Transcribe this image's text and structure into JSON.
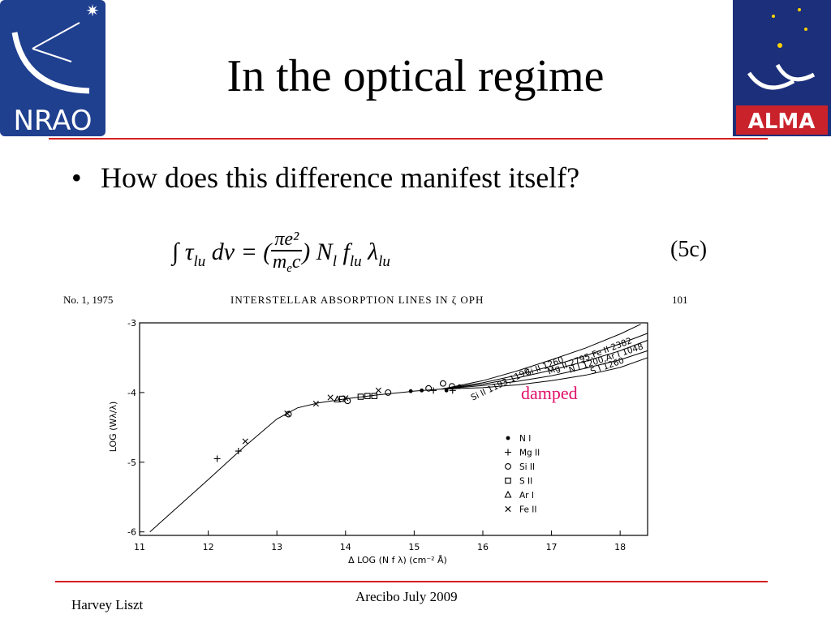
{
  "header": {
    "title": "In the optical regime"
  },
  "logos": {
    "left": "NRAO",
    "right": "ALMA"
  },
  "bullets": [
    "How does this difference manifest itself?"
  ],
  "equation": {
    "parts": [
      "∫ τ",
      "lu",
      " dv = (",
      "πe²",
      "m",
      "e",
      "c",
      ") N",
      "l",
      " f",
      "lu",
      " λ",
      "lu"
    ],
    "number": "(5c)"
  },
  "figure": {
    "running_head": {
      "left": "No. 1, 1975",
      "center": "INTERSTELLAR ABSORPTION LINES IN ζ OPH",
      "right": "101"
    },
    "xlabel": "Δ LOG (N f λ)   (cm⁻² Å)",
    "ylabel": "LOG (Wλ/λ)",
    "xlim": [
      11,
      18.4
    ],
    "ylim": [
      -6.05,
      -3
    ],
    "xticks": [
      11,
      12,
      13,
      14,
      15,
      16,
      17,
      18
    ],
    "yticks": [
      -3,
      -4,
      -5,
      -6
    ],
    "curves": [
      {
        "x": [
          11.15,
          12.0,
          12.5,
          13.0,
          13.3,
          13.6,
          14.0,
          14.5,
          15.0,
          15.4
        ],
        "y": [
          -6.0,
          -5.25,
          -4.8,
          -4.38,
          -4.22,
          -4.15,
          -4.09,
          -4.03,
          -3.98,
          -3.95
        ]
      },
      {
        "label": "Si II 1193,1190",
        "x": [
          15.4,
          16,
          16.5,
          17,
          17.5,
          18,
          18.3
        ],
        "y": [
          -3.95,
          -3.83,
          -3.69,
          -3.53,
          -3.36,
          -3.16,
          -3.02
        ]
      },
      {
        "label": "Si II 1260",
        "x": [
          15.4,
          16,
          16.5,
          17,
          17.5,
          18,
          18.4
        ],
        "y": [
          -3.95,
          -3.86,
          -3.75,
          -3.62,
          -3.47,
          -3.3,
          -3.15
        ]
      },
      {
        "label": "Mg II 2795,Fe II 2382",
        "x": [
          15.4,
          16,
          16.5,
          17,
          17.5,
          18,
          18.4
        ],
        "y": [
          -3.95,
          -3.88,
          -3.79,
          -3.68,
          -3.55,
          -3.4,
          -3.25
        ]
      },
      {
        "label": "N I 1200,Ar I 1048",
        "x": [
          15.4,
          16,
          16.5,
          17,
          17.5,
          18,
          18.4
        ],
        "y": [
          -3.95,
          -3.9,
          -3.84,
          -3.76,
          -3.65,
          -3.53,
          -3.4
        ]
      },
      {
        "label": "S I 1260",
        "x": [
          15.4,
          16,
          16.5,
          17,
          17.5,
          18,
          18.4
        ],
        "y": [
          -3.95,
          -3.93,
          -3.89,
          -3.83,
          -3.75,
          -3.64,
          -3.5
        ]
      }
    ],
    "series": [
      {
        "name": "N I",
        "marker": "dot",
        "x": [
          14.95,
          15.11,
          15.47,
          15.66
        ],
        "y": [
          -3.98,
          -3.97,
          -3.97,
          -3.91
        ]
      },
      {
        "name": "Mg II",
        "marker": "plus",
        "x": [
          12.13,
          12.44,
          15.28,
          15.56
        ],
        "y": [
          -4.95,
          -4.84,
          -3.97,
          -3.97
        ]
      },
      {
        "name": "Si II",
        "marker": "circle",
        "x": [
          13.17,
          14.03,
          14.62,
          15.21,
          15.42,
          15.55
        ],
        "y": [
          -4.31,
          -4.12,
          -4.0,
          -3.94,
          -3.87,
          -3.91
        ]
      },
      {
        "name": "S II",
        "marker": "square",
        "x": [
          13.95,
          14.22,
          14.32,
          14.42
        ],
        "y": [
          -4.09,
          -4.06,
          -4.05,
          -4.05
        ]
      },
      {
        "name": "Ar I",
        "marker": "triangle",
        "x": [
          13.88
        ],
        "y": [
          -4.1
        ]
      },
      {
        "name": "Fe II",
        "marker": "cross",
        "x": [
          12.54,
          13.15,
          13.57,
          13.78,
          14.0,
          14.48
        ],
        "y": [
          -4.7,
          -4.3,
          -4.16,
          -4.07,
          -4.08,
          -3.97
        ]
      }
    ],
    "annotation": "damped"
  },
  "footer": {
    "author": "Harvey Liszt",
    "event": "Arecibo July 2009"
  }
}
